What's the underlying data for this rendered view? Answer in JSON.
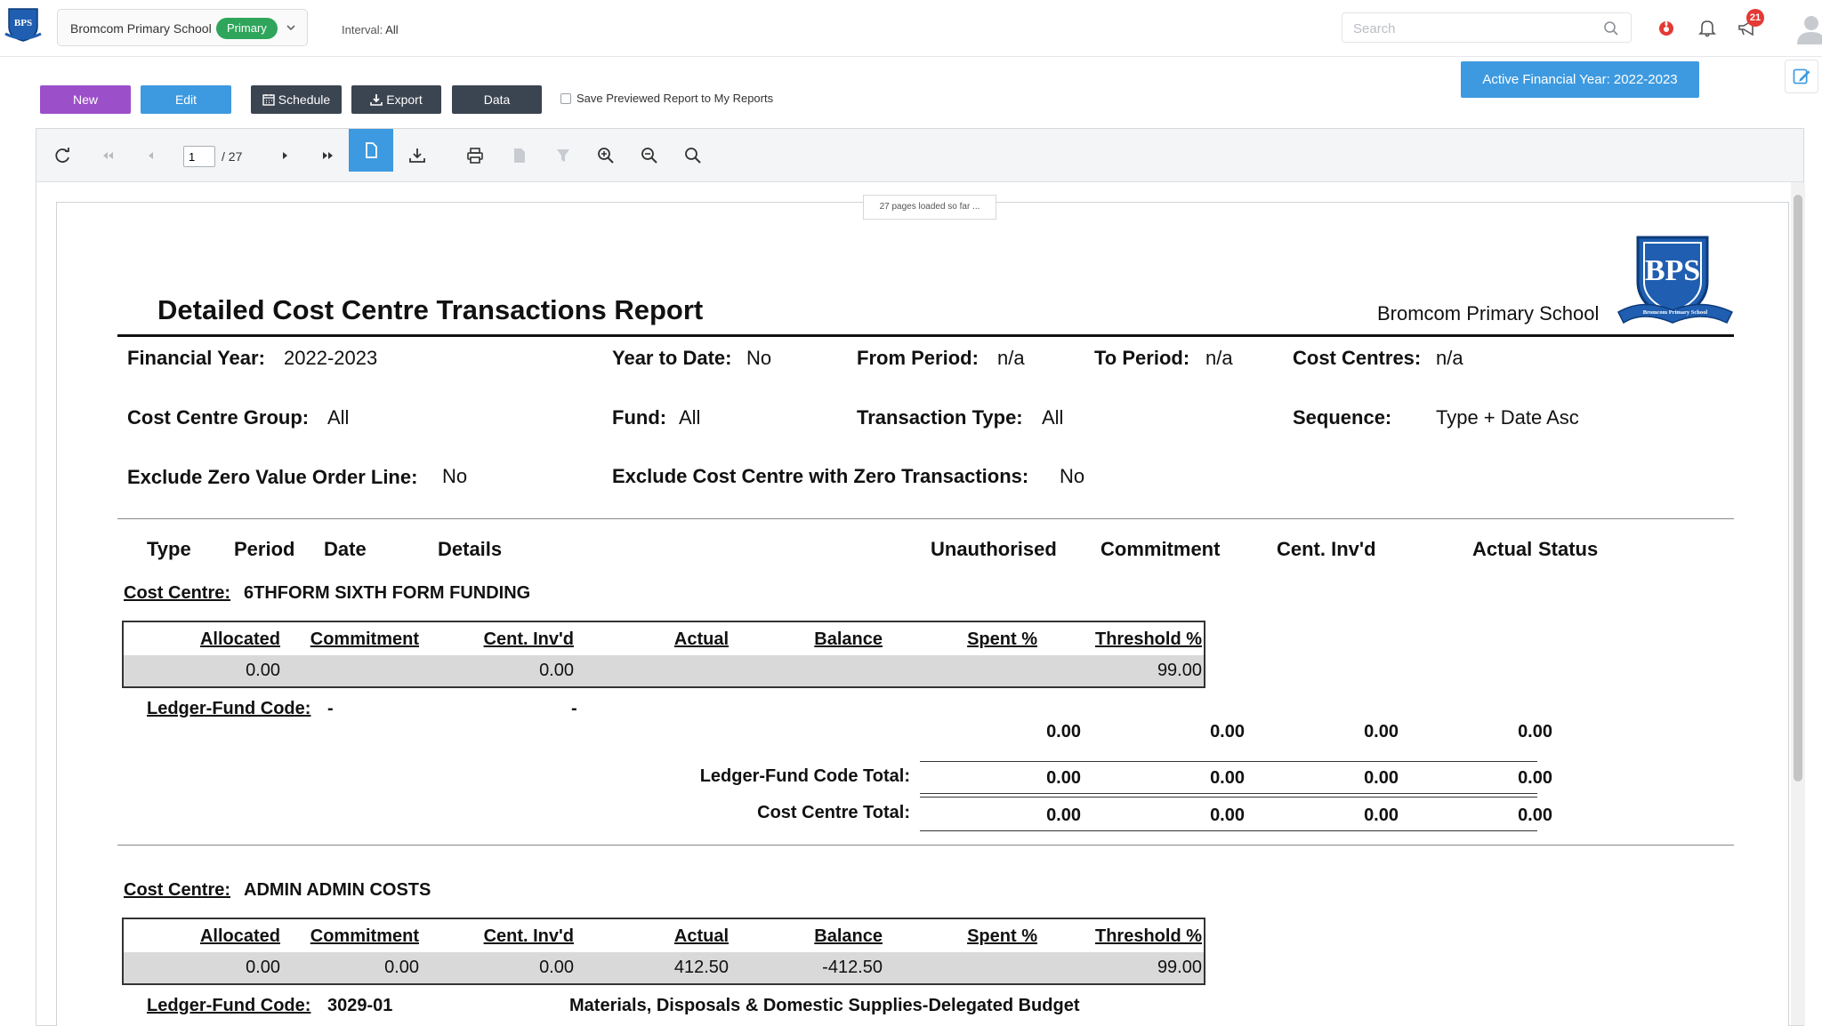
{
  "header": {
    "school_name": "Bromcom Primary School",
    "school_badge": "Primary",
    "interval_label": "Interval:",
    "interval_value": "All",
    "search_placeholder": "Search",
    "notification_count": "21"
  },
  "actions": {
    "new_label": "New",
    "edit_label": "Edit",
    "schedule_label": "Schedule",
    "export_label": "Export",
    "data_label": "Data",
    "save_report_label": "Save Previewed Report to My Reports",
    "active_fy_label": "Active Financial Year: 2022-2023"
  },
  "viewer": {
    "current_page": "1",
    "total_pages": "/ 27",
    "loaded_text": "27 pages loaded so far ..."
  },
  "report": {
    "title": "Detailed Cost Centre Transactions Report",
    "school": "Bromcom Primary School",
    "logo_text": "BPS",
    "logo_ribbon": "Bromcom Primary School",
    "params": {
      "financial_year_label": "Financial Year:",
      "financial_year_value": "2022-2023",
      "ytd_label": "Year to Date:",
      "ytd_value": "No",
      "from_period_label": "From Period:",
      "from_period_value": "n/a",
      "to_period_label": "To Period:",
      "to_period_value": "n/a",
      "cost_centres_label": "Cost Centres:",
      "cost_centres_value": "n/a",
      "cc_group_label": "Cost Centre Group:",
      "cc_group_value": "All",
      "fund_label": "Fund:",
      "fund_value": "All",
      "txn_type_label": "Transaction Type:",
      "txn_type_value": "All",
      "sequence_label": "Sequence:",
      "sequence_value": "Type + Date Asc",
      "exclude_zero_label": "Exclude Zero Value Order Line:",
      "exclude_zero_value": "No",
      "exclude_cc_label": "Exclude Cost Centre with Zero Transactions:",
      "exclude_cc_value": "No"
    },
    "columns": {
      "type": "Type",
      "period": "Period",
      "date": "Date",
      "details": "Details",
      "unauthorised": "Unauthorised",
      "commitment": "Commitment",
      "cent_invd": "Cent. Inv'd",
      "actual": "Actual",
      "status": "Status"
    },
    "summary_headers": {
      "allocated": "Allocated",
      "commitment": "Commitment",
      "cent_invd": "Cent. Inv'd",
      "actual": "Actual",
      "balance": "Balance",
      "spent": "Spent %",
      "threshold": "Threshold %"
    },
    "cost_centre_label": "Cost Centre:",
    "ledger_fund_label": "Ledger-Fund Code:",
    "ledger_total_label": "Ledger-Fund Code Total:",
    "cc_total_label": "Cost Centre Total:",
    "cc1": {
      "name": "6THFORM SIXTH FORM FUNDING",
      "allocated": "0.00",
      "commitment": "",
      "cent_invd": "0.00",
      "actual": "",
      "balance": "",
      "spent": "",
      "threshold": "99.00",
      "ledger_code": "-",
      "ledger_desc": "-",
      "line": [
        "0.00",
        "0.00",
        "0.00",
        "0.00"
      ],
      "ledger_total": [
        "0.00",
        "0.00",
        "0.00",
        "0.00"
      ],
      "cc_total": [
        "0.00",
        "0.00",
        "0.00",
        "0.00"
      ]
    },
    "cc2": {
      "name": "ADMIN ADMIN COSTS",
      "allocated": "0.00",
      "commitment": "0.00",
      "cent_invd": "0.00",
      "actual": "412.50",
      "balance": "-412.50",
      "spent": "",
      "threshold": "99.00",
      "ledger_code": "3029-01",
      "ledger_desc": "Materials, Disposals & Domestic Supplies-Delegated Budget"
    }
  },
  "colors": {
    "new_button": "#9b4fc9",
    "accent_blue": "#3d9ae0",
    "dark_button": "#3b4451",
    "badge_green": "#2ea55b",
    "logo_blue": "#1f5eb0"
  }
}
